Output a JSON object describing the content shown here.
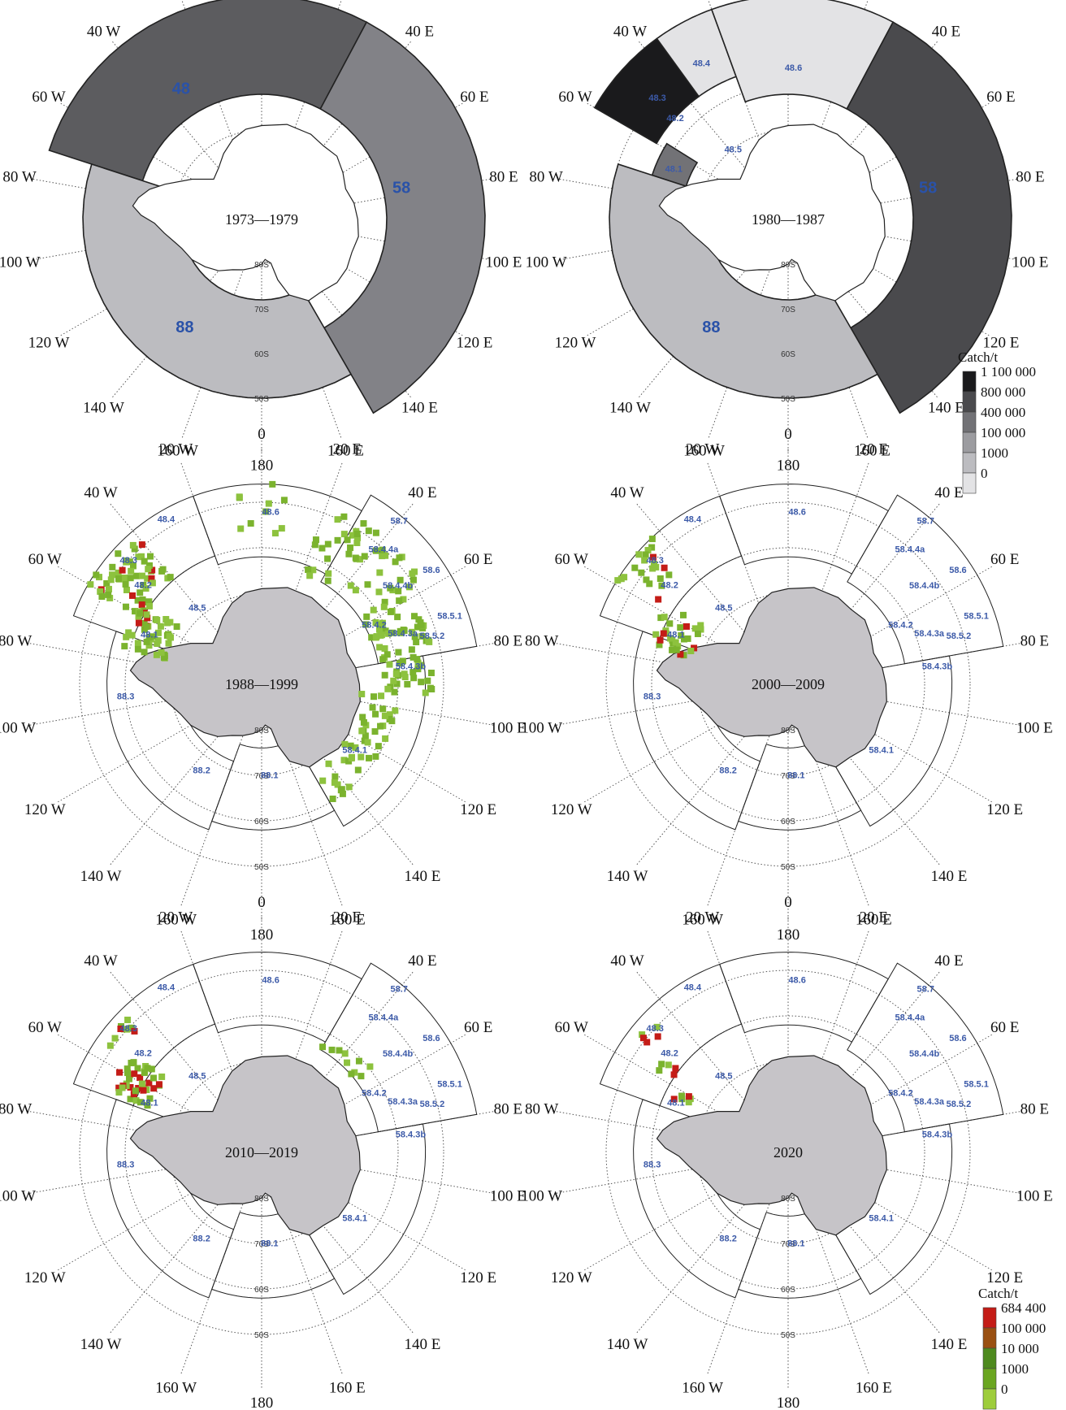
{
  "maps": [
    {
      "id": "map-1973-1979",
      "period": "1973—1979",
      "style": "grey",
      "area_labels": [
        {
          "text": "48",
          "lon": -32,
          "colat": 34,
          "size": "big"
        },
        {
          "text": "58",
          "lon": 78,
          "colat": 32,
          "size": "big"
        },
        {
          "text": "88",
          "lon": -145,
          "colat": 30,
          "size": "big"
        }
      ],
      "sectors": [
        {
          "name": "area-48",
          "lon1": -72,
          "lon2": 28,
          "rin_colat": 28,
          "rout_colat": 50,
          "fill": "#5c5c5f"
        },
        {
          "name": "area-58",
          "lon1": 28,
          "lon2": 150,
          "rin_colat": 28,
          "rout_colat": 50,
          "fill": "#828287"
        },
        {
          "name": "area-88",
          "lon1": 150,
          "lon2": 288,
          "rin_colat": 18,
          "rout_colat": 40,
          "fill": "#bcbcc0"
        }
      ],
      "cells": []
    },
    {
      "id": "map-1980-1987",
      "period": "1980—1987",
      "style": "grey",
      "area_labels": [
        {
          "text": "48.3",
          "lon": -47,
          "colat": 40,
          "size": "small"
        },
        {
          "text": "48.4",
          "lon": -29,
          "colat": 40,
          "size": "small"
        },
        {
          "text": "48.6",
          "lon": 2,
          "colat": 34,
          "size": "small"
        },
        {
          "text": "48.2",
          "lon": -48,
          "colat": 34,
          "size": "small"
        },
        {
          "text": "48.1",
          "lon": -66,
          "colat": 28,
          "size": "small"
        },
        {
          "text": "48.5",
          "lon": -38,
          "colat": 20,
          "size": "small"
        },
        {
          "text": "58",
          "lon": 78,
          "colat": 32,
          "size": "big"
        },
        {
          "text": "88",
          "lon": -145,
          "colat": 30,
          "size": "big"
        }
      ],
      "sectors": [
        {
          "name": "subarea-48-3",
          "lon1": -60,
          "lon2": -36,
          "rin_colat": 34,
          "rout_colat": 50,
          "fill": "#1a1a1c"
        },
        {
          "name": "subarea-48-4",
          "lon1": -36,
          "lon2": -20,
          "rin_colat": 34,
          "rout_colat": 50,
          "fill": "#e3e3e5"
        },
        {
          "name": "subarea-48-6",
          "lon1": -20,
          "lon2": 28,
          "rin_colat": 28,
          "rout_colat": 50,
          "fill": "#e3e3e5"
        },
        {
          "name": "subarea-48-1",
          "lon1": -72,
          "lon2": -58,
          "rin_colat": 24,
          "rout_colat": 32,
          "fill": "#727276"
        },
        {
          "name": "area-58",
          "lon1": 28,
          "lon2": 150,
          "rin_colat": 28,
          "rout_colat": 50,
          "fill": "#4a4a4d"
        },
        {
          "name": "area-88",
          "lon1": 150,
          "lon2": 288,
          "rin_colat": 18,
          "rout_colat": 40,
          "fill": "#bcbcc0"
        }
      ],
      "cells": [],
      "legend": {
        "title": "Catch/t",
        "labels": [
          "1 100 000",
          "800 000",
          "400 000",
          "100 000",
          "1000",
          "0"
        ],
        "colors": [
          "#1a1a1c",
          "#4a4a4d",
          "#727276",
          "#9c9ca0",
          "#bcbcc0",
          "#e3e3e5"
        ]
      }
    },
    {
      "id": "map-1988-1999",
      "period": "1988—1999",
      "style": "grid",
      "cells_seed": 11,
      "cells": [
        {
          "lon1": -62,
          "lon2": -40,
          "c1": 30,
          "c2": 44,
          "n": 60,
          "red": 0.12
        },
        {
          "lon1": -75,
          "lon2": -55,
          "c1": 22,
          "c2": 32,
          "n": 45,
          "red": 0.15
        },
        {
          "lon1": 20,
          "lon2": 60,
          "c1": 26,
          "c2": 42,
          "n": 55,
          "red": 0
        },
        {
          "lon1": 60,
          "lon2": 95,
          "c1": 26,
          "c2": 38,
          "n": 70,
          "red": 0
        },
        {
          "lon1": 95,
          "lon2": 150,
          "c1": 22,
          "c2": 30,
          "n": 45,
          "red": 0
        },
        {
          "lon1": -10,
          "lon2": 10,
          "c1": 32,
          "c2": 46,
          "n": 10,
          "red": 0
        }
      ]
    },
    {
      "id": "map-2000-2009",
      "period": "2000—2009",
      "style": "grid",
      "cells_seed": 23,
      "cells": [
        {
          "lon1": -60,
          "lon2": -42,
          "c1": 34,
          "c2": 44,
          "n": 22,
          "red": 0.2
        },
        {
          "lon1": -75,
          "lon2": -55,
          "c1": 22,
          "c2": 32,
          "n": 30,
          "red": 0.15
        }
      ]
    },
    {
      "id": "map-2010-2019",
      "period": "2010—2019",
      "style": "grid",
      "cells_seed": 37,
      "cells": [
        {
          "lon1": -55,
          "lon2": -45,
          "c1": 38,
          "c2": 42,
          "n": 10,
          "red": 0.35
        },
        {
          "lon1": -68,
          "lon2": -52,
          "c1": 26,
          "c2": 36,
          "n": 40,
          "red": 0.2
        },
        {
          "lon1": 30,
          "lon2": 55,
          "c1": 26,
          "c2": 32,
          "n": 10,
          "red": 0
        }
      ]
    },
    {
      "id": "map-2020",
      "period": "2020",
      "style": "grid",
      "cells_seed": 51,
      "cells": [
        {
          "lon1": -54,
          "lon2": -46,
          "c1": 38,
          "c2": 42,
          "n": 5,
          "red": 0.4
        },
        {
          "lon1": -60,
          "lon2": -52,
          "c1": 30,
          "c2": 34,
          "n": 5,
          "red": 0.4
        },
        {
          "lon1": -68,
          "lon2": -60,
          "c1": 24,
          "c2": 28,
          "n": 6,
          "red": 0.3
        }
      ],
      "legend": {
        "title": "Catch/t",
        "labels": [
          "684 400",
          "100 000",
          "10 000",
          "1000",
          "0"
        ],
        "colors": [
          "#c41c17",
          "#9a5012",
          "#4e8a1e",
          "#6aa620",
          "#9ecd3c"
        ]
      }
    }
  ],
  "lon_labels": [
    "0",
    "20 E",
    "40 E",
    "60 E",
    "80 E",
    "100 E",
    "120 E",
    "140 E",
    "160 E",
    "180",
    "160 W",
    "140 W",
    "120 W",
    "100 W",
    "80 W",
    "60 W",
    "40 W",
    "20 W"
  ],
  "lat_labels": [
    "80S",
    "70S",
    "60S",
    "50S"
  ],
  "grid_area_labels": [
    {
      "text": "48.3",
      "lon": -47,
      "colat": 40
    },
    {
      "text": "48.4",
      "lon": -30,
      "colat": 42
    },
    {
      "text": "48.6",
      "lon": 3,
      "colat": 38
    },
    {
      "text": "48.2",
      "lon": -50,
      "colat": 34
    },
    {
      "text": "48.1",
      "lon": -66,
      "colat": 27
    },
    {
      "text": "48.5",
      "lon": -40,
      "colat": 22
    },
    {
      "text": "58.7",
      "lon": 40,
      "colat": 47
    },
    {
      "text": "58.4.4a",
      "lon": 42,
      "colat": 40
    },
    {
      "text": "58.6",
      "lon": 56,
      "colat": 45
    },
    {
      "text": "58.4.4b",
      "lon": 54,
      "colat": 37
    },
    {
      "text": "58.5.1",
      "lon": 70,
      "colat": 44
    },
    {
      "text": "58.4.2",
      "lon": 62,
      "colat": 28
    },
    {
      "text": "58.4.3a",
      "lon": 70,
      "colat": 33
    },
    {
      "text": "58.5.2",
      "lon": 74,
      "colat": 39
    },
    {
      "text": "58.4.3b",
      "lon": 83,
      "colat": 33
    },
    {
      "text": "58.4.1",
      "lon": 125,
      "colat": 25
    },
    {
      "text": "88.3",
      "lon": -95,
      "colat": 30
    },
    {
      "text": "88.2",
      "lon": -145,
      "colat": 23
    },
    {
      "text": "88.1",
      "lon": 175,
      "colat": 20
    }
  ]
}
